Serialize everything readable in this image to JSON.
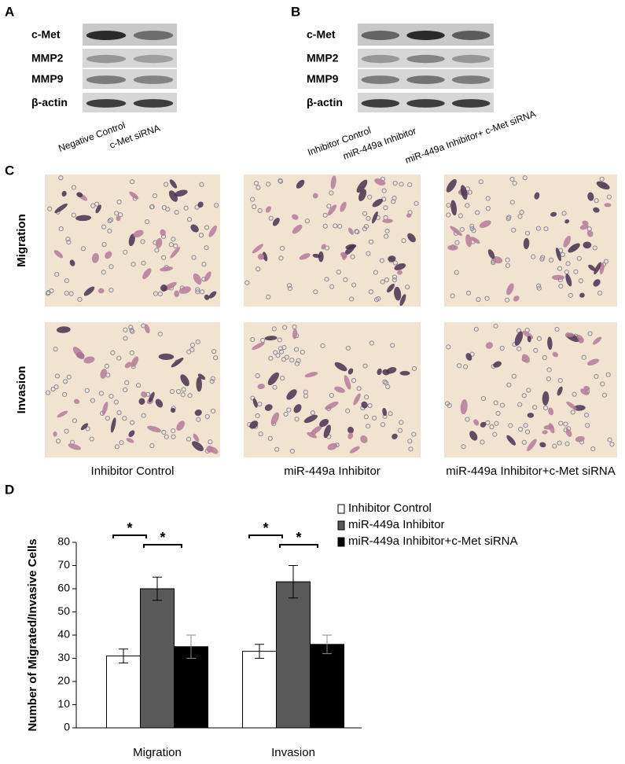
{
  "panel_a": {
    "label": "A",
    "rows": [
      "c-Met",
      "MMP2",
      "MMP9",
      "β-actin"
    ],
    "lanes": [
      "Negative Control",
      "c-Met siRNA"
    ]
  },
  "panel_b": {
    "label": "B",
    "rows": [
      "c-Met",
      "MMP2",
      "MMP9",
      "β-actin"
    ],
    "lanes": [
      "Inhibitor Control",
      "miR-449a Inhibitor",
      "miR-449a Inhibitor+ c-Met siRNA"
    ]
  },
  "panel_c": {
    "label": "C",
    "rows": [
      "Migration",
      "Invasion"
    ],
    "columns": [
      "Inhibitor Control",
      "miR-449a Inhibitor",
      "miR-449a Inhibitor+c-Met siRNA"
    ]
  },
  "chart_data": {
    "type": "bar",
    "label": "D",
    "y_label": "Number of Migrated/Invasive Cells",
    "categories": [
      "Migration",
      "Invasion"
    ],
    "series": [
      {
        "name": "Inhibitor Control",
        "color": "#ffffff",
        "values": [
          31,
          33
        ],
        "errors": [
          3,
          3
        ]
      },
      {
        "name": "miR-449a Inhibitor",
        "color": "#595959",
        "values": [
          60,
          63
        ],
        "errors": [
          5,
          7
        ]
      },
      {
        "name": "miR-449a Inhibitor+c-Met siRNA",
        "color": "#000000",
        "values": [
          35,
          36
        ],
        "errors": [
          5,
          4
        ]
      }
    ],
    "ylim": [
      0,
      80
    ],
    "yticks": [
      0,
      10,
      20,
      30,
      40,
      50,
      60,
      70,
      80
    ],
    "annotations": [
      "*",
      "*",
      "*",
      "*"
    ]
  }
}
